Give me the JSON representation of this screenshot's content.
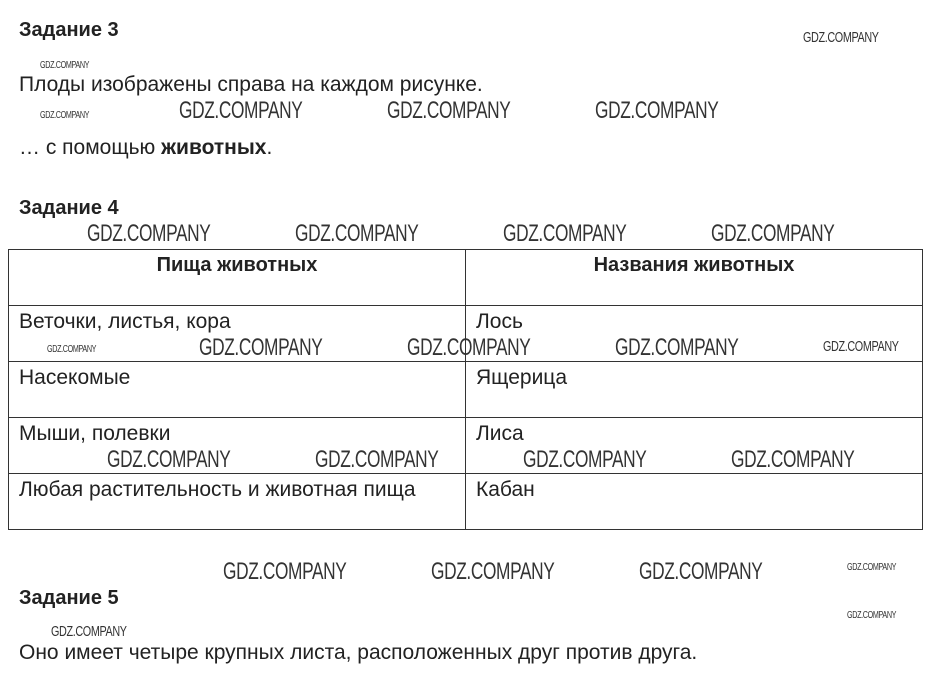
{
  "task3": {
    "title": "Задание 3",
    "line1": "Плоды изображены справа на каждом рисунке.",
    "line2_prefix": "… с помощью ",
    "line2_bold": "животных",
    "line2_suffix": "."
  },
  "task4": {
    "title": "Задание 4",
    "table": {
      "headers": [
        "Пища животных",
        "Названия животных"
      ],
      "rows": [
        [
          "Веточки, листья, кора",
          "Лось"
        ],
        [
          "Насекомые",
          "Ящерица"
        ],
        [
          "Мыши, полевки",
          "Лиса"
        ],
        [
          "Любая растительность и животная пища",
          "Кабан"
        ]
      ]
    }
  },
  "task5": {
    "title": "Задание 5",
    "line1": "Оно имеет четыре крупных листа, расположенных друг против друга."
  },
  "watermark": "GDZ.COMPANY"
}
